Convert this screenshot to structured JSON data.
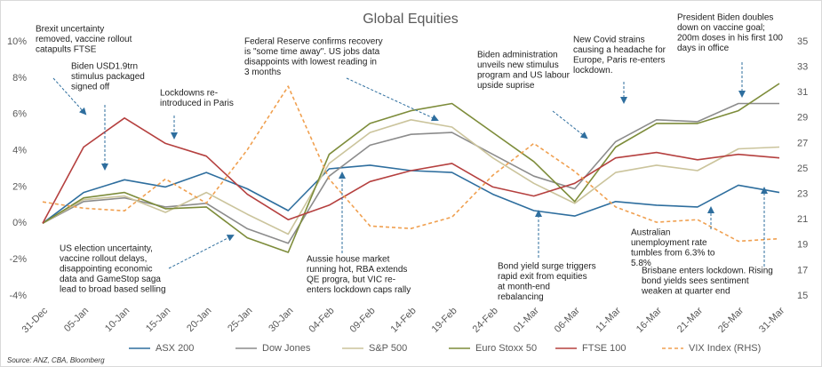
{
  "chart_data": {
    "type": "line",
    "title": "Global Equities",
    "source": "Source: ANZ, CBA, Bloomberg",
    "categories": [
      "31-Dec",
      "05-Jan",
      "10-Jan",
      "15-Jan",
      "20-Jan",
      "25-Jan",
      "30-Jan",
      "04-Feb",
      "09-Feb",
      "14-Feb",
      "19-Feb",
      "24-Feb",
      "01-Mar",
      "06-Mar",
      "11-Mar",
      "16-Mar",
      "21-Mar",
      "26-Mar",
      "31-Mar"
    ],
    "series": [
      {
        "name": "ASX 200",
        "color": "#2e6e9e",
        "values": [
          0,
          1.7,
          2.4,
          2.0,
          2.8,
          1.9,
          0.7,
          3.0,
          3.2,
          2.9,
          2.8,
          1.6,
          0.7,
          0.4,
          1.2,
          1.0,
          0.9,
          2.1,
          1.7
        ]
      },
      {
        "name": "Dow Jones",
        "color": "#8c8c8c",
        "values": [
          0,
          1.2,
          1.4,
          0.9,
          1.1,
          -0.3,
          -1.1,
          2.6,
          4.3,
          4.9,
          5.0,
          3.8,
          2.6,
          1.9,
          4.5,
          5.7,
          5.6,
          6.6,
          6.6
        ]
      },
      {
        "name": "S&P 500",
        "color": "#cbc49c",
        "values": [
          0,
          1.3,
          1.5,
          0.6,
          1.7,
          0.5,
          -0.6,
          3.3,
          5.0,
          5.7,
          5.3,
          3.6,
          2.2,
          1.1,
          2.8,
          3.2,
          2.9,
          4.1,
          4.2
        ]
      },
      {
        "name": "Euro Stoxx 50",
        "color": "#7d8c3a",
        "values": [
          0,
          1.4,
          1.7,
          0.8,
          0.9,
          -0.8,
          -1.6,
          3.8,
          5.5,
          6.2,
          6.6,
          5.0,
          3.4,
          1.2,
          4.2,
          5.5,
          5.5,
          6.2,
          7.7
        ]
      },
      {
        "name": "FTSE 100",
        "color": "#b5403f",
        "values": [
          0,
          4.2,
          5.8,
          4.4,
          3.7,
          1.6,
          0.2,
          1.0,
          2.3,
          2.9,
          3.3,
          2.0,
          1.5,
          2.2,
          3.6,
          3.9,
          3.5,
          3.8,
          3.6
        ]
      },
      {
        "name": "VIX Index (RHS)",
        "color": "#f0a050",
        "dashed": true,
        "axis": "y2",
        "values": [
          22.4,
          21.9,
          21.7,
          24.2,
          22.3,
          26.5,
          31.5,
          24.2,
          20.5,
          20.3,
          21.2,
          24.5,
          27.0,
          24.8,
          22.0,
          20.8,
          21.0,
          19.3,
          19.5
        ]
      }
    ],
    "ylim": [
      -4,
      10
    ],
    "yticks": [
      {
        "value": -4,
        "label": "-4%"
      },
      {
        "value": -2,
        "label": "-2%"
      },
      {
        "value": 0,
        "label": "0%"
      },
      {
        "value": 2,
        "label": "2%"
      },
      {
        "value": 4,
        "label": "4%"
      },
      {
        "value": 6,
        "label": "6%"
      },
      {
        "value": 8,
        "label": "8%"
      },
      {
        "value": 10,
        "label": "10%"
      }
    ],
    "y2lim": [
      15,
      35
    ],
    "y2ticks": [
      15,
      17,
      19,
      21,
      23,
      25,
      27,
      29,
      31,
      33,
      35
    ],
    "grid": false,
    "legend": "bottom",
    "annotations": [
      {
        "lines": [
          "Brexit uncertainty",
          "removed, vaccine rollout",
          "catapults FTSE"
        ]
      },
      {
        "lines": [
          "Biden USD1.9trn",
          "stimulus packaged",
          "signed off"
        ]
      },
      {
        "lines": [
          "Lockdowns re-",
          "introduced in Paris"
        ]
      },
      {
        "lines": [
          "Federal Reserve confirms recovery",
          "is \"some time away\". US jobs data",
          "disappoints with lowest reading in",
          "3 months"
        ]
      },
      {
        "lines": [
          "Biden administration",
          "unveils new stimulus",
          "program and  US labour",
          "upside suprise"
        ]
      },
      {
        "lines": [
          "New Covid strains",
          "causing a headache for",
          "Europe, Paris re-enters",
          "lockdown."
        ]
      },
      {
        "lines": [
          "President Biden doubles",
          "down on vaccine goal;",
          "200m doses in his first 100",
          "days in office"
        ]
      },
      {
        "lines": [
          "US election uncertainty,",
          "vaccine rollout delays,",
          "disappointing economic",
          "data and GameStop saga",
          "lead to broad based selling"
        ]
      },
      {
        "lines": [
          "Aussie house market",
          "running hot, RBA extends",
          "QE progra,  but VIC re-",
          "enters lockdown caps rally"
        ]
      },
      {
        "lines": [
          "Bond yield surge triggers",
          "rapid exit from equities",
          "at month-end",
          "rebalancing"
        ]
      },
      {
        "lines": [
          "Australian",
          "unemployment rate",
          "tumbles from 6.3% to",
          "5.8%"
        ]
      },
      {
        "lines": [
          "Brisbane enters lockdown. Rising",
          "bond yields sees sentiment",
          "weaken at quarter end"
        ]
      }
    ]
  }
}
